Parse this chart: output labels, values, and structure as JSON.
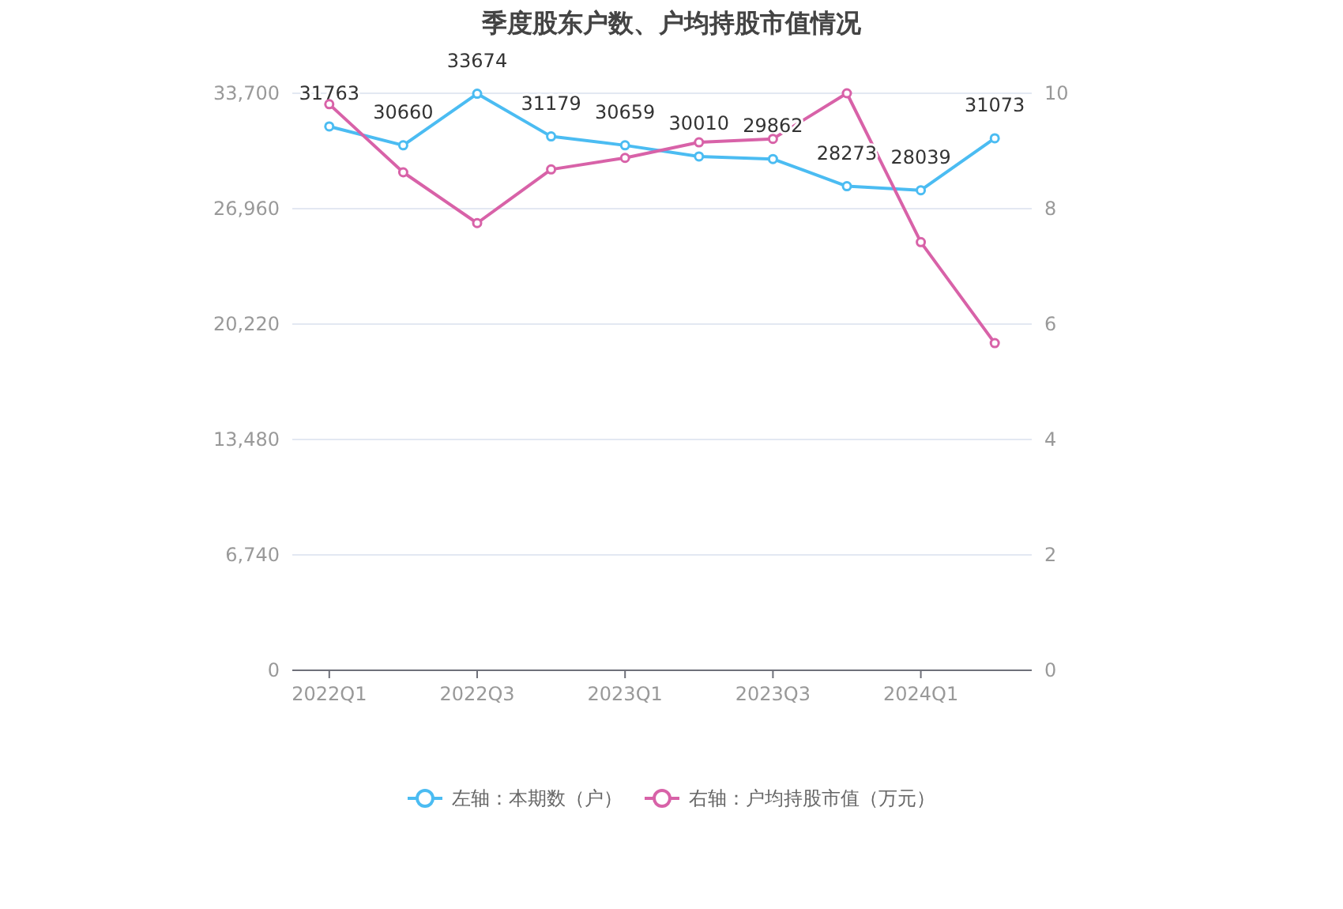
{
  "chart_data": {
    "type": "line",
    "title": "季度股东户数、户均持股市值情况",
    "categories": [
      "2022Q1",
      null,
      "2022Q3",
      null,
      "2023Q1",
      null,
      "2023Q3",
      null,
      "2024Q1",
      null
    ],
    "series": [
      {
        "name": "左轴：本期数（户）",
        "color": "#4bbcf2",
        "values": [
          31763,
          30660,
          33674,
          31179,
          30659,
          30010,
          29862,
          28273,
          28039,
          31073
        ],
        "value_labels": [
          "31763",
          "30660",
          "33674",
          "31179",
          "30659",
          "30010",
          "29862",
          "28273",
          "28039",
          "31073"
        ]
      },
      {
        "name": "右轴：户均持股市值（万元）",
        "color": "#d862a8",
        "axis": "y2",
        "values": [
          9.81,
          8.63,
          7.75,
          8.68,
          8.88,
          9.15,
          9.21,
          10.0,
          7.42,
          5.67
        ]
      }
    ],
    "ylim": [
      0,
      33700
    ],
    "yticks": [
      0,
      {
        "value": 6740,
        "label": "6,740"
      },
      {
        "value": 13480,
        "label": "13,480"
      },
      {
        "value": 20220,
        "label": "20,220"
      },
      {
        "value": 26960,
        "label": "26,960"
      },
      {
        "value": 33700,
        "label": "33,700"
      }
    ],
    "y2lim": [
      0,
      10
    ],
    "y2ticks": [
      0,
      2,
      4,
      6,
      8,
      10
    ],
    "grid": "y",
    "legend": "bottom",
    "marker": "circle",
    "line_style": "solid"
  }
}
